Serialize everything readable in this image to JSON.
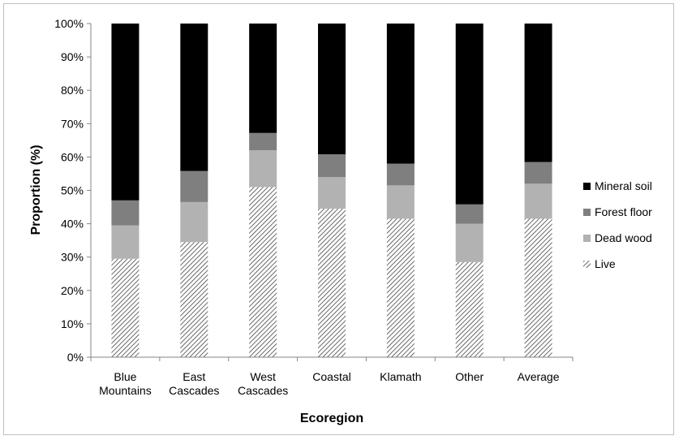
{
  "chart_data": {
    "type": "bar",
    "stacked": true,
    "percent_stacked": true,
    "categories": [
      [
        "Blue",
        "Mountains"
      ],
      [
        "East",
        "Cascades"
      ],
      [
        "West",
        "Cascades"
      ],
      [
        "Coastal"
      ],
      [
        "Klamath"
      ],
      [
        "Other"
      ],
      [
        "Average"
      ]
    ],
    "series": [
      {
        "name": "Live",
        "pattern": "hatch",
        "color": "#6d6d6d",
        "values": [
          29.5,
          34.5,
          51,
          44.5,
          41.5,
          28.5,
          41.5
        ]
      },
      {
        "name": "Dead wood",
        "color": "#b2b2b2",
        "values": [
          10,
          12,
          11,
          9.5,
          10,
          11.5,
          10.5
        ]
      },
      {
        "name": "Forest floor",
        "color": "#7f7f7f",
        "values": [
          7.5,
          9.3,
          5.2,
          6.8,
          6.5,
          5.8,
          6.5
        ]
      },
      {
        "name": "Mineral soil",
        "color": "#000000",
        "values": [
          53,
          44.2,
          32.8,
          39.2,
          42,
          54.2,
          41.5
        ]
      }
    ],
    "legend_order": [
      "Mineral soil",
      "Forest floor",
      "Dead wood",
      "Live"
    ],
    "xlabel": "Ecoregion",
    "ylabel": "Proportion (%)",
    "ylim": [
      0,
      100
    ],
    "yticks": [
      "0%",
      "10%",
      "20%",
      "30%",
      "40%",
      "50%",
      "60%",
      "70%",
      "80%",
      "90%",
      "100%"
    ],
    "grid": false,
    "legend_position": "right"
  }
}
